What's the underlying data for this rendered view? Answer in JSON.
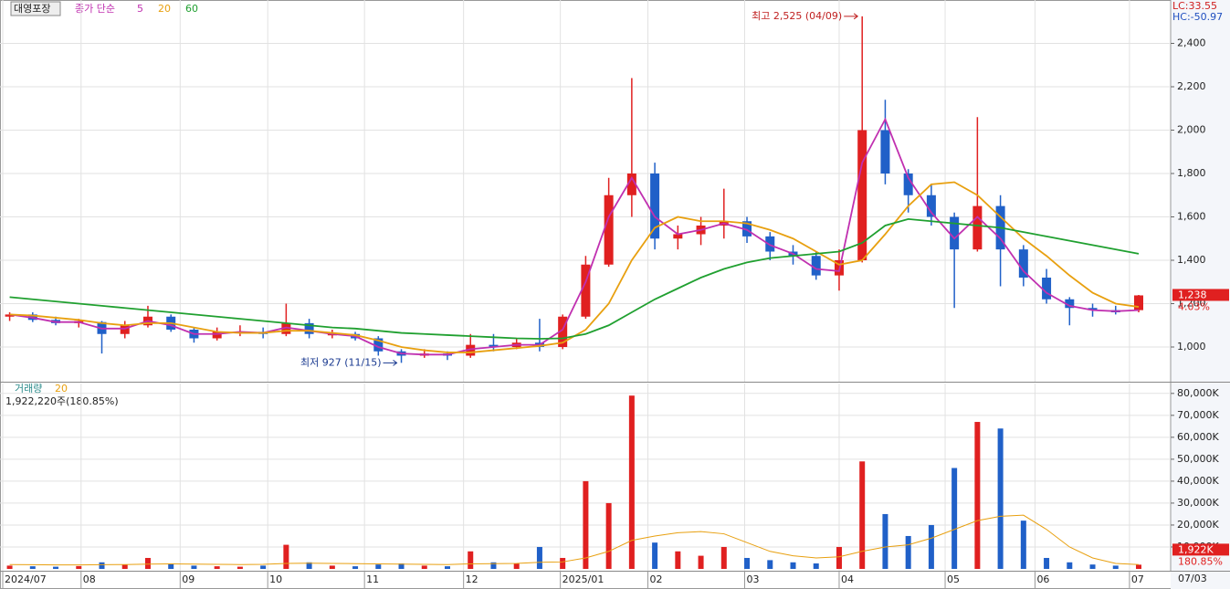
{
  "chart_data": [
    {
      "type": "candlestick",
      "name": "대영포장",
      "ma_label": "종가 단순",
      "x": [
        0,
        1,
        2,
        3,
        4,
        5,
        6,
        7,
        8,
        9,
        10,
        11,
        12,
        13,
        14,
        15,
        16,
        17,
        18,
        19,
        20,
        21,
        22,
        23,
        24,
        25,
        26,
        27,
        28,
        29,
        30,
        31,
        32,
        33,
        34,
        35,
        36,
        37,
        38,
        39,
        40,
        41,
        42,
        43,
        44,
        45,
        46,
        47,
        48,
        49
      ],
      "open": [
        1140,
        1150,
        1125,
        1110,
        1115,
        1060,
        1100,
        1140,
        1080,
        1040,
        1070,
        1070,
        1060,
        1110,
        1060,
        1060,
        1040,
        980,
        960,
        970,
        960,
        1010,
        1000,
        1020,
        1000,
        1140,
        1380,
        1700,
        1800,
        1500,
        1520,
        1560,
        1580,
        1510,
        1440,
        1420,
        1330,
        1400,
        2000,
        1800,
        1700,
        1600,
        1450,
        1650,
        1450,
        1320,
        1220,
        1180,
        1170,
        1170
      ],
      "high": [
        1160,
        1160,
        1140,
        1130,
        1120,
        1120,
        1190,
        1150,
        1090,
        1090,
        1100,
        1090,
        1200,
        1130,
        1080,
        1070,
        1050,
        990,
        990,
        980,
        1060,
        1060,
        1040,
        1130,
        1150,
        1420,
        1780,
        2240,
        1850,
        1560,
        1600,
        1730,
        1600,
        1530,
        1470,
        1440,
        1450,
        2525,
        2140,
        1820,
        1750,
        1620,
        2060,
        1700,
        1470,
        1360,
        1230,
        1200,
        1190,
        1240
      ],
      "low": [
        1120,
        1115,
        1100,
        1090,
        970,
        1040,
        1090,
        1070,
        1020,
        1030,
        1050,
        1040,
        1050,
        1040,
        1040,
        1030,
        960,
        927,
        950,
        940,
        950,
        980,
        990,
        980,
        990,
        1130,
        1370,
        1600,
        1450,
        1450,
        1470,
        1500,
        1480,
        1400,
        1380,
        1310,
        1260,
        1390,
        1750,
        1620,
        1560,
        1180,
        1440,
        1280,
        1280,
        1200,
        1100,
        1140,
        1150,
        1160
      ],
      "close": [
        1150,
        1125,
        1110,
        1120,
        1060,
        1100,
        1140,
        1080,
        1040,
        1070,
        1070,
        1060,
        1110,
        1060,
        1060,
        1040,
        980,
        960,
        970,
        960,
        1010,
        1000,
        1020,
        1000,
        1140,
        1380,
        1700,
        1800,
        1500,
        1520,
        1560,
        1580,
        1510,
        1440,
        1420,
        1330,
        1400,
        2000,
        1800,
        1700,
        1600,
        1450,
        1650,
        1450,
        1320,
        1220,
        1180,
        1170,
        1160,
        1238
      ],
      "up_color": "#e02020",
      "down_color": "#2060c8",
      "series": [
        {
          "name": "5",
          "color": "#c030b0",
          "values": [
            1150,
            1135,
            1115,
            1115,
            1085,
            1085,
            1120,
            1100,
            1060,
            1060,
            1070,
            1065,
            1090,
            1075,
            1060,
            1050,
            1000,
            970,
            965,
            965,
            990,
            1000,
            1010,
            1010,
            1080,
            1300,
            1600,
            1780,
            1600,
            1520,
            1540,
            1570,
            1540,
            1470,
            1430,
            1360,
            1350,
            1850,
            2050,
            1780,
            1620,
            1500,
            1600,
            1500,
            1350,
            1250,
            1190,
            1170,
            1165,
            1170
          ]
        },
        {
          "name": "20",
          "color": "#e8a010",
          "values": [
            1150,
            1145,
            1135,
            1125,
            1110,
            1100,
            1110,
            1110,
            1090,
            1070,
            1065,
            1065,
            1075,
            1075,
            1065,
            1055,
            1030,
            1000,
            985,
            975,
            975,
            985,
            995,
            1005,
            1020,
            1080,
            1200,
            1400,
            1550,
            1600,
            1580,
            1580,
            1570,
            1540,
            1500,
            1440,
            1380,
            1400,
            1520,
            1650,
            1750,
            1760,
            1700,
            1600,
            1500,
            1420,
            1330,
            1250,
            1200,
            1185
          ]
        },
        {
          "name": "60",
          "color": "#20a030",
          "values": [
            1230,
            1220,
            1210,
            1200,
            1190,
            1180,
            1170,
            1160,
            1150,
            1140,
            1130,
            1120,
            1110,
            1100,
            1090,
            1085,
            1075,
            1065,
            1060,
            1055,
            1050,
            1045,
            1040,
            1038,
            1040,
            1060,
            1100,
            1160,
            1220,
            1270,
            1320,
            1360,
            1390,
            1410,
            1420,
            1430,
            1440,
            1480,
            1560,
            1590,
            1580,
            1570,
            1560,
            1550,
            1530,
            1510,
            1490,
            1470,
            1450,
            1430
          ]
        }
      ],
      "xlim": [
        -0.3,
        49
      ],
      "xticks": [
        {
          "value": -0.3,
          "label": "2024/07"
        },
        {
          "value": 3.1,
          "label": "08"
        },
        {
          "value": 7.4,
          "label": "09"
        },
        {
          "value": 11.2,
          "label": "10"
        },
        {
          "value": 15.4,
          "label": "11"
        },
        {
          "value": 19.7,
          "label": "12"
        },
        {
          "value": 23.9,
          "label": "2025/01"
        },
        {
          "value": 27.7,
          "label": "02"
        },
        {
          "value": 31.9,
          "label": "03"
        },
        {
          "value": 36.0,
          "label": "04"
        },
        {
          "value": 40.6,
          "label": "05"
        },
        {
          "value": 44.5,
          "label": "06"
        },
        {
          "value": 48.6,
          "label": "07"
        }
      ],
      "last_date": "07/03",
      "ylim": [
        840,
        2600
      ],
      "yticks": [
        {
          "value": 1000,
          "label": "1,000"
        },
        {
          "value": 1200,
          "label": "1,200"
        },
        {
          "value": 1400,
          "label": "1,400"
        },
        {
          "value": 1600,
          "label": "1,600"
        },
        {
          "value": 1800,
          "label": "1,800"
        },
        {
          "value": 2000,
          "label": "2,000"
        },
        {
          "value": 2200,
          "label": "2,200"
        },
        {
          "value": 2400,
          "label": "2,400"
        }
      ],
      "grid": true,
      "lc": "LC:33.55",
      "hc": "HC:-50.97",
      "last_label": "1,238",
      "last_change": "4.03%",
      "high_annotation": {
        "index": 37,
        "text": "최고 2,525 (04/09)"
      },
      "low_annotation": {
        "index": 17,
        "text": "최저 927 (11/15)"
      }
    },
    {
      "type": "bar",
      "name": "거래량",
      "summary": "1,922,220주(180.85%)",
      "values": [
        1500,
        1200,
        1000,
        1300,
        3000,
        2000,
        5000,
        2500,
        1500,
        1200,
        1000,
        1500,
        11000,
        3000,
        1500,
        1200,
        2000,
        2500,
        1500,
        1200,
        8000,
        3000,
        2500,
        10000,
        5000,
        40000,
        30000,
        79000,
        12000,
        8000,
        6000,
        10000,
        5000,
        4000,
        3000,
        2500,
        10000,
        49000,
        25000,
        15000,
        20000,
        46000,
        67000,
        64000,
        22000,
        5000,
        3000,
        2000,
        1500,
        1922
      ],
      "series": [
        {
          "name": "20",
          "color": "#e8a010",
          "values": [
            2000,
            1900,
            1800,
            1800,
            1900,
            2000,
            2200,
            2300,
            2200,
            2100,
            2000,
            2100,
            2500,
            2600,
            2500,
            2400,
            2300,
            2200,
            2100,
            2000,
            2300,
            2400,
            2500,
            3000,
            3200,
            5000,
            8000,
            13000,
            15000,
            16500,
            17000,
            16000,
            12000,
            8000,
            6000,
            5000,
            5500,
            8000,
            10000,
            11000,
            14000,
            18000,
            22000,
            24000,
            24500,
            18000,
            10000,
            5000,
            2500,
            2000
          ]
        }
      ],
      "ylim": [
        0,
        84500
      ],
      "yticks": [
        {
          "value": 10000,
          "label": "10,000K"
        },
        {
          "value": 20000,
          "label": "20,000K"
        },
        {
          "value": 30000,
          "label": "30,000K"
        },
        {
          "value": 40000,
          "label": "40,000K"
        },
        {
          "value": 50000,
          "label": "50,000K"
        },
        {
          "value": 60000,
          "label": "60,000K"
        },
        {
          "value": 70000,
          "label": "70,000K"
        },
        {
          "value": 80000,
          "label": "80,000K"
        }
      ],
      "last_label": "1,922K",
      "last_change": "180.85%"
    }
  ]
}
